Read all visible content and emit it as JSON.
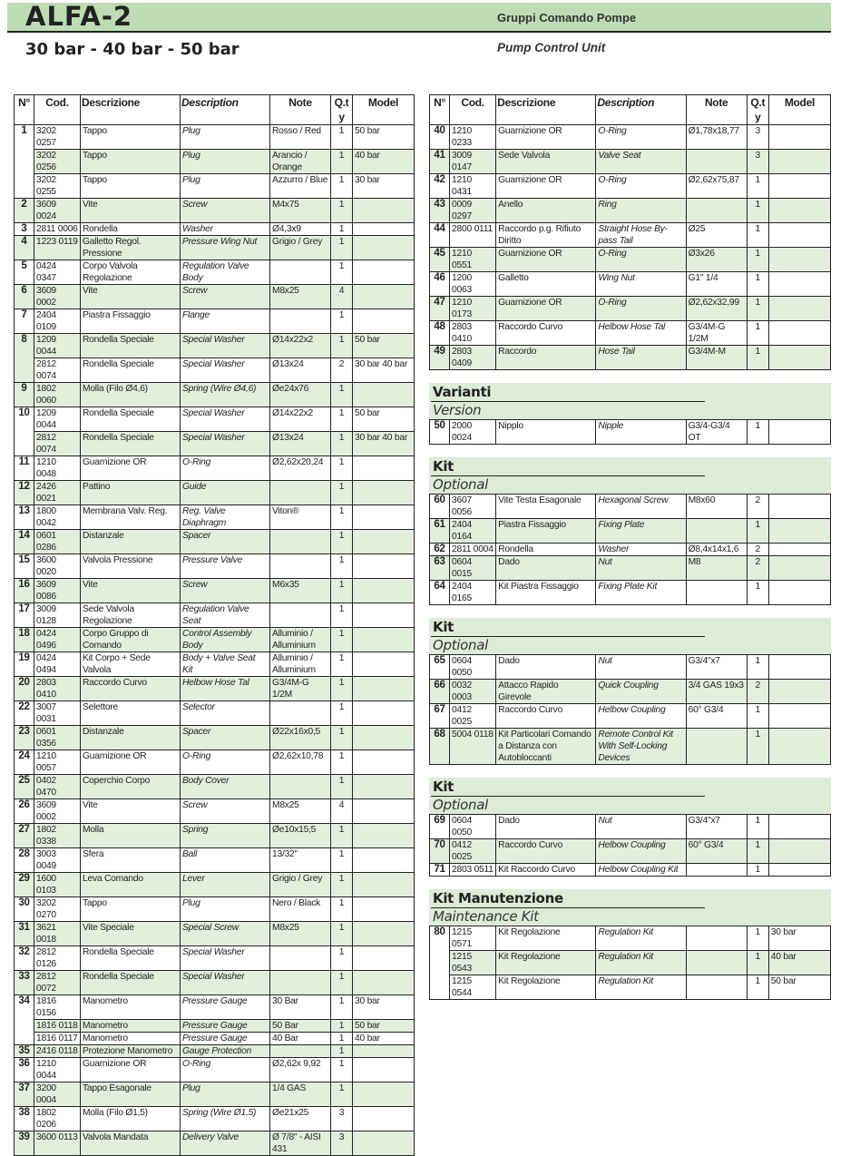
{
  "header": {
    "title": "ALFA-2",
    "subtitle_it": "Gruppi Comando Pompe",
    "range": "30 bar - 40 bar - 50 bar",
    "subtitle_en": "Pump Control Unit"
  },
  "columns": [
    "N°",
    "Cod.",
    "Descrizione",
    "Description",
    "Note",
    "Q.ty",
    "Model"
  ],
  "main_left": [
    [
      "1",
      "3202 0257",
      "Tappo",
      "Plug",
      "Rosso / Red",
      "1",
      "50 bar"
    ],
    [
      "",
      "3202 0256",
      "Tappo",
      "Plug",
      "Arancio / Orange",
      "1",
      "40 bar"
    ],
    [
      "",
      "3202 0255",
      "Tappo",
      "Plug",
      "Azzurro / Blue",
      "1",
      "30 bar"
    ],
    [
      "2",
      "3609 0024",
      "Vite",
      "Screw",
      "M4x75",
      "1",
      ""
    ],
    [
      "3",
      "2811 0006",
      "Rondella",
      "Washer",
      "Ø4,3x9",
      "1",
      ""
    ],
    [
      "4",
      "1223 0119",
      "Galletto Regol. Pressione",
      "Pressure Wing Nut",
      "Grigio / Grey",
      "1",
      ""
    ],
    [
      "5",
      "0424 0347",
      "Corpo Valvola Regolazione",
      "Regulation Valve Body",
      "",
      "1",
      ""
    ],
    [
      "6",
      "3609 0002",
      "Vite",
      "Screw",
      "M8x25",
      "4",
      ""
    ],
    [
      "7",
      "2404 0109",
      "Piastra Fissaggio",
      "Flange",
      "",
      "1",
      ""
    ],
    [
      "8",
      "1209 0044",
      "Rondella Speciale",
      "Special Washer",
      "Ø14x22x2",
      "1",
      "50 bar"
    ],
    [
      "",
      "2812 0074",
      "Rondella Speciale",
      "Special Washer",
      "Ø13x24",
      "2",
      "30 bar 40 bar"
    ],
    [
      "9",
      "1802 0060",
      "Molla (Filo Ø4,6)",
      "Spring (Wire Ø4,6)",
      "Øe24x76",
      "1",
      ""
    ],
    [
      "10",
      "1209 0044",
      "Rondella Speciale",
      "Special Washer",
      "Ø14x22x2",
      "1",
      "50 bar"
    ],
    [
      "",
      "2812 0074",
      "Rondella Speciale",
      "Special Washer",
      "Ø13x24",
      "1",
      "30 bar 40 bar"
    ],
    [
      "11",
      "1210 0048",
      "Guarnizione OR",
      "O-Ring",
      "Ø2,62x20,24",
      "1",
      ""
    ],
    [
      "12",
      "2426 0021",
      "Pattino",
      "Guide",
      "",
      "1",
      ""
    ],
    [
      "13",
      "1800 0042",
      "Membrana Valv. Reg.",
      "Reg. Valve Diaphragm",
      "Viton®",
      "1",
      ""
    ],
    [
      "14",
      "0601 0286",
      "Distanzale",
      "Spacer",
      "",
      "1",
      ""
    ],
    [
      "15",
      "3600 0020",
      "Valvola Pressione",
      "Pressure Valve",
      "",
      "1",
      ""
    ],
    [
      "16",
      "3609 0086",
      "Vite",
      "Screw",
      "M6x35",
      "1",
      ""
    ],
    [
      "17",
      "3009 0128",
      "Sede Valvola Regolazione",
      "Regulation Valve Seat",
      "",
      "1",
      ""
    ],
    [
      "18",
      "0424 0496",
      "Corpo Gruppo di Comando",
      "Control Assembly Body",
      "Alluminio / Alluminium",
      "1",
      ""
    ],
    [
      "19",
      "0424 0494",
      "Kit Corpo + Sede Valvola",
      "Body + Valve Seat Kit",
      "Alluminio / Alluminium",
      "1",
      ""
    ],
    [
      "20",
      "2803 0410",
      "Raccordo Curvo",
      "Helbow Hose Tal",
      "G3/4M-G 1/2M",
      "1",
      ""
    ],
    [
      "22",
      "3007 0031",
      "Selettore",
      "Selector",
      "",
      "1",
      ""
    ],
    [
      "23",
      "0601 0356",
      "Distanzale",
      "Spacer",
      "Ø22x16x0,5",
      "1",
      ""
    ],
    [
      "24",
      "1210 0057",
      "Guarnizione OR",
      "O-Ring",
      "Ø2,62x10,78",
      "1",
      ""
    ],
    [
      "25",
      "0402 0470",
      "Coperchio Corpo",
      "Body Cover",
      "",
      "1",
      ""
    ],
    [
      "26",
      "3609 0002",
      "Vite",
      "Screw",
      "M8x25",
      "4",
      ""
    ],
    [
      "27",
      "1802 0338",
      "Molla",
      "Spring",
      "Øe10x15,5",
      "1",
      ""
    ],
    [
      "28",
      "3003 0049",
      "Sfera",
      "Ball",
      "13/32\"",
      "1",
      ""
    ],
    [
      "29",
      "1600 0103",
      "Leva Comando",
      "Lever",
      "Grigio / Grey",
      "1",
      ""
    ],
    [
      "30",
      "3202 0270",
      "Tappo",
      "Plug",
      "Nero / Black",
      "1",
      ""
    ],
    [
      "31",
      "3621 0018",
      "Vite Speciale",
      "Special Screw",
      "M8x25",
      "1",
      ""
    ],
    [
      "32",
      "2812 0126",
      "Rondella Speciale",
      "Special Washer",
      "",
      "1",
      ""
    ],
    [
      "33",
      "2812 0072",
      "Rondella Speciale",
      "Special Washer",
      "",
      "1",
      ""
    ],
    [
      "34",
      "1816 0156",
      "Manometro",
      "Pressure Gauge",
      "30 Bar",
      "1",
      "30 bar"
    ],
    [
      "",
      "1816 0118",
      "Manometro",
      "Pressure Gauge",
      "50 Bar",
      "1",
      "50 bar"
    ],
    [
      "",
      "1816 0117",
      "Manometro",
      "Pressure Gauge",
      "40 Bar",
      "1",
      "40 bar"
    ],
    [
      "35",
      "2416 0118",
      "Protezione Manometro",
      "Gauge Protection",
      "",
      "1",
      ""
    ],
    [
      "36",
      "1210 0044",
      "Guarnizione OR",
      "O-Ring",
      "Ø2,62x 9,92",
      "1",
      ""
    ],
    [
      "37",
      "3200 0004",
      "Tappo Esagonale",
      "Plug",
      "1/4 GAS",
      "1",
      ""
    ],
    [
      "38",
      "1802 0206",
      "Molla (Filo Ø1,5)",
      "Spring (Wire Ø1,5)",
      "Øe21x25",
      "3",
      ""
    ],
    [
      "39",
      "3600 0113",
      "Valvola Mandata",
      "Delivery Valve",
      "Ø 7/8\" - AISI 431",
      "3",
      ""
    ]
  ],
  "main_right": [
    [
      "40",
      "1210 0233",
      "Guarnizione OR",
      "O-Ring",
      "Ø1,78x18,77",
      "3",
      ""
    ],
    [
      "41",
      "3009 0147",
      "Sede Valvola",
      "Valve Seat",
      "",
      "3",
      ""
    ],
    [
      "42",
      "1210 0431",
      "Guarnizione OR",
      "O-Ring",
      "Ø2,62x75,87",
      "1",
      ""
    ],
    [
      "43",
      "0009 0297",
      "Anello",
      "Ring",
      "",
      "1",
      ""
    ],
    [
      "44",
      "2800 0111",
      "Raccordo p.g. Rifiuto Diritto",
      "Straight Hose By-pass Tail",
      "Ø25",
      "1",
      ""
    ],
    [
      "45",
      "1210 0551",
      "Guarnizione OR",
      "O-Ring",
      "Ø3x26",
      "1",
      ""
    ],
    [
      "46",
      "1200 0063",
      "Galletto",
      "Wing Nut",
      "G1\" 1/4",
      "1",
      ""
    ],
    [
      "47",
      "1210 0173",
      "Guarnizione OR",
      "O-Ring",
      "Ø2,62x32,99",
      "1",
      ""
    ],
    [
      "48",
      "2803 0410",
      "Raccordo Curvo",
      "Helbow Hose Tal",
      "G3/4M-G 1/2M",
      "1",
      ""
    ],
    [
      "49",
      "2803 0409",
      "Raccordo",
      "Hose Tail",
      "G3/4M-M",
      "1",
      ""
    ]
  ],
  "sections": [
    {
      "title": "Varianti",
      "subtitle": "Version",
      "rows": [
        [
          "50",
          "2000 0024",
          "Nipplo",
          "Nipple",
          "G3/4-G3/4 OT",
          "1",
          ""
        ]
      ]
    },
    {
      "title": "Kit",
      "subtitle": "Optional",
      "rows": [
        [
          "60",
          "3607 0056",
          "Vite Testa Esagonale",
          "Hexagonal Screw",
          "M8x60",
          "2",
          ""
        ],
        [
          "61",
          "2404 0164",
          "Piastra Fissaggio",
          "Fixing Plate",
          "",
          "1",
          ""
        ],
        [
          "62",
          "2811 0004",
          "Rondella",
          "Washer",
          "Ø8,4x14x1,6",
          "2",
          ""
        ],
        [
          "63",
          "0604 0015",
          "Dado",
          "Nut",
          "M8",
          "2",
          ""
        ],
        [
          "64",
          "2404 0165",
          "Kit Piastra Fissaggio",
          "Fixing Plate Kit",
          "",
          "1",
          ""
        ]
      ]
    },
    {
      "title": "Kit",
      "subtitle": "Optional",
      "rows": [
        [
          "65",
          "0604 0050",
          "Dado",
          "Nut",
          "G3/4\"x7",
          "1",
          ""
        ],
        [
          "66",
          "0032 0003",
          "Attacco Rapido Girevole",
          "Quick Coupling",
          "3/4 GAS 19x3",
          "2",
          ""
        ],
        [
          "67",
          "0412 0025",
          "Raccordo Curvo",
          "Helbow Coupling",
          "60° G3/4",
          "1",
          ""
        ],
        [
          "68",
          "5004 0118",
          "Kit Particolari Comando a Distanza con Autobloccanti",
          "Remote Control Kit With Self-Locking Devices",
          "",
          "1",
          ""
        ]
      ]
    },
    {
      "title": "Kit",
      "subtitle": "Optional",
      "rows": [
        [
          "69",
          "0604 0050",
          "Dado",
          "Nut",
          "G3/4\"x7",
          "1",
          ""
        ],
        [
          "70",
          "0412 0025",
          "Raccordo Curvo",
          "Helbow Coupling",
          "60° G3/4",
          "1",
          ""
        ],
        [
          "71",
          "2803 0511",
          "Kit Raccordo Curvo",
          "Helbow Coupling Kit",
          "",
          "1",
          ""
        ]
      ]
    },
    {
      "title": "Kit Manutenzione",
      "subtitle": "Maintenance Kit",
      "rows": [
        [
          "80",
          "1215 0571",
          "Kit Regolazione",
          "Regulation Kit",
          "",
          "1",
          "30 bar"
        ],
        [
          "",
          "1215 0543",
          "Kit Regolazione",
          "Regulation Kit",
          "",
          "1",
          "40 bar"
        ],
        [
          "",
          "1215 0544",
          "Kit Regolazione",
          "Regulation Kit",
          "",
          "1",
          "50 bar"
        ]
      ]
    }
  ],
  "colors": {
    "header_band": "#bddcb4",
    "section_band": "#ddecd6",
    "row_shade": "#e3efdd"
  }
}
